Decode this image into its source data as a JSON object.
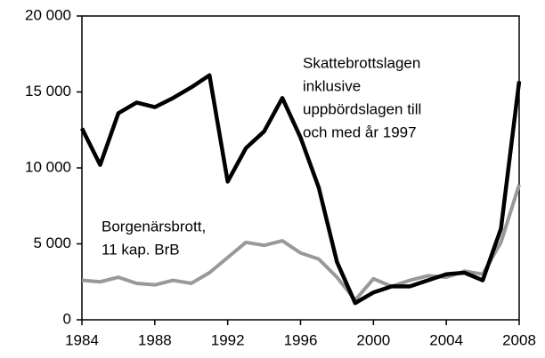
{
  "chart_data": {
    "type": "line",
    "x": [
      1984,
      1985,
      1986,
      1987,
      1988,
      1989,
      1990,
      1991,
      1992,
      1993,
      1994,
      1995,
      1996,
      1997,
      1998,
      1999,
      2000,
      2001,
      2002,
      2003,
      2004,
      2005,
      2006,
      2007,
      2008
    ],
    "series": [
      {
        "color": "#000000",
        "values": [
          12600,
          10200,
          13600,
          14300,
          14000,
          14600,
          15300,
          16100,
          9100,
          11300,
          12400,
          14600,
          12000,
          8700,
          3800,
          1100,
          1800,
          2200,
          2200,
          2600,
          3000,
          3100,
          2600,
          6000,
          15700
        ]
      },
      {
        "color": "#999999",
        "values": [
          2600,
          2500,
          2800,
          2400,
          2300,
          2600,
          2400,
          3100,
          4100,
          5100,
          4900,
          5200,
          4400,
          4000,
          2800,
          1300,
          2700,
          2200,
          2600,
          2900,
          2800,
          3200,
          3000,
          5100,
          8900
        ]
      }
    ],
    "annotations": [
      {
        "lines": [
          "Skattebrottslagen",
          "inklusive",
          "uppbördslagen till",
          "och med år 1997"
        ]
      },
      {
        "lines": [
          "Borgenärsbrott,",
          "11 kap. BrB"
        ]
      }
    ],
    "xlim": [
      1984,
      2008
    ],
    "xticks": [
      1984,
      1988,
      1992,
      1996,
      2000,
      2004,
      2008
    ],
    "ylim": [
      0,
      20000
    ],
    "yticks": [
      0,
      {
        "value": 5000,
        "label": "5 000"
      },
      {
        "value": 10000,
        "label": "10 000"
      },
      {
        "value": 15000,
        "label": "15 000"
      },
      {
        "value": 20000,
        "label": "20 000"
      }
    ]
  }
}
